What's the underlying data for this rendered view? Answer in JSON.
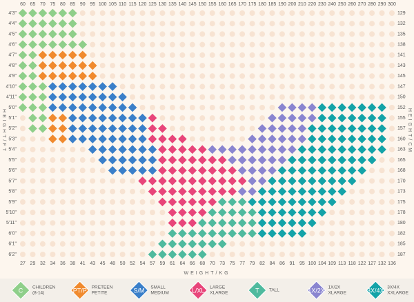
{
  "weights_lb": [
    60,
    65,
    70,
    75,
    80,
    85,
    90,
    95,
    100,
    105,
    110,
    115,
    120,
    125,
    130,
    135,
    140,
    145,
    150,
    155,
    160,
    165,
    170,
    175,
    180,
    185,
    190,
    200,
    210,
    220,
    230,
    240,
    250,
    260,
    270,
    280,
    290,
    300
  ],
  "weights_kg": [
    27,
    29,
    32,
    34,
    36,
    38,
    41,
    43,
    45,
    48,
    50,
    52,
    54,
    57,
    59,
    61,
    64,
    66,
    68,
    70,
    73,
    75,
    77,
    79,
    82,
    84,
    86,
    91,
    95,
    100,
    104,
    109,
    113,
    118,
    122,
    127,
    132,
    136
  ],
  "heights_ft": [
    "4'3\"",
    "4'4\"",
    "4'5\"",
    "4'6\"",
    "4'7\"",
    "4'8\"",
    "4'9\"",
    "4'10\"",
    "4'11\"",
    "5'0\"",
    "5'1\"",
    "5'2\"",
    "5'3\"",
    "5'4\"",
    "5'5\"",
    "5'6\"",
    "5'7\"",
    "5'8\"",
    "5'9\"",
    "5'10\"",
    "5'11\"",
    "6'0\"",
    "6'1\"",
    "6'2\""
  ],
  "heights_cm": [
    129,
    132,
    135,
    138,
    141,
    143,
    145,
    147,
    150,
    152,
    155,
    157,
    160,
    163,
    165,
    168,
    170,
    173,
    175,
    178,
    180,
    182,
    185,
    187
  ],
  "x_axis_label": "WEIGHT/KG",
  "y_axis_label": "HEIGHT/FT",
  "y2_axis_label": "HEIGHT/CM",
  "legend": [
    {
      "code": "C",
      "lines": [
        "CHILDREN",
        "(8-14)"
      ],
      "color": "#8fcf8a"
    },
    {
      "code": "PT/P",
      "lines": [
        "PRETEEN",
        "PETITE"
      ],
      "color": "#f08a2e"
    },
    {
      "code": "S/M",
      "lines": [
        "SMALL",
        "MEDIUM"
      ],
      "color": "#3a7fc9"
    },
    {
      "code": "L/XL",
      "lines": [
        "LARGE",
        "XLARGE"
      ],
      "color": "#e8457a"
    },
    {
      "code": "T",
      "lines": [
        "TALL"
      ],
      "color": "#4fba9e"
    },
    {
      "code": "1X/2X",
      "lines": [
        "1X/2X",
        "XLARGE"
      ],
      "color": "#8a85d0"
    },
    {
      "code": "3X/4X",
      "lines": [
        "3X/4X",
        "XXLARGE"
      ],
      "color": "#14a3a8"
    }
  ],
  "grid": [
    [
      "C",
      "C",
      "C",
      "C",
      "C",
      "C",
      null,
      null,
      null,
      null,
      null,
      null,
      null,
      null,
      null,
      null,
      null,
      null,
      null,
      null,
      null,
      null,
      null,
      null,
      null,
      null,
      null,
      null,
      null,
      null,
      null,
      null,
      null,
      null,
      null,
      null,
      null,
      null
    ],
    [
      "C",
      "C",
      "C",
      "C",
      "C",
      "C",
      null,
      null,
      null,
      null,
      null,
      null,
      null,
      null,
      null,
      null,
      null,
      null,
      null,
      null,
      null,
      null,
      null,
      null,
      null,
      null,
      null,
      null,
      null,
      null,
      null,
      null,
      null,
      null,
      null,
      null,
      null,
      null
    ],
    [
      "C",
      "C",
      "C",
      "C",
      "C",
      "C",
      null,
      null,
      null,
      null,
      null,
      null,
      null,
      null,
      null,
      null,
      null,
      null,
      null,
      null,
      null,
      null,
      null,
      null,
      null,
      null,
      null,
      null,
      null,
      null,
      null,
      null,
      null,
      null,
      null,
      null,
      null,
      null
    ],
    [
      "C",
      "C",
      "C",
      "C",
      "C",
      "C",
      "C",
      null,
      null,
      null,
      null,
      null,
      null,
      null,
      null,
      null,
      null,
      null,
      null,
      null,
      null,
      null,
      null,
      null,
      null,
      null,
      null,
      null,
      null,
      null,
      null,
      null,
      null,
      null,
      null,
      null,
      null,
      null
    ],
    [
      "C",
      "C",
      "PT/P",
      "PT/P",
      "PT/P",
      "PT/P",
      "PT/P",
      null,
      null,
      null,
      null,
      null,
      null,
      null,
      null,
      null,
      null,
      null,
      null,
      null,
      null,
      null,
      null,
      null,
      null,
      null,
      null,
      null,
      null,
      null,
      null,
      null,
      null,
      null,
      null,
      null,
      null,
      null
    ],
    [
      "C",
      "C",
      "PT/P",
      "PT/P",
      "PT/P",
      "PT/P",
      "PT/P",
      "PT/P",
      null,
      null,
      null,
      null,
      null,
      null,
      null,
      null,
      null,
      null,
      null,
      null,
      null,
      null,
      null,
      null,
      null,
      null,
      null,
      null,
      null,
      null,
      null,
      null,
      null,
      null,
      null,
      null,
      null,
      null
    ],
    [
      "C",
      "C",
      "PT/P",
      "PT/P",
      "PT/P",
      "PT/P",
      "PT/P",
      "PT/P",
      null,
      null,
      null,
      null,
      null,
      null,
      null,
      null,
      null,
      null,
      null,
      null,
      null,
      null,
      null,
      null,
      null,
      null,
      null,
      null,
      null,
      null,
      null,
      null,
      null,
      null,
      null,
      null,
      null,
      null
    ],
    [
      "C",
      "C",
      "C",
      "S/M",
      "S/M",
      "S/M",
      "S/M",
      "S/M",
      "S/M",
      "S/M",
      null,
      null,
      null,
      null,
      null,
      null,
      null,
      null,
      null,
      null,
      null,
      null,
      null,
      null,
      null,
      null,
      null,
      null,
      null,
      null,
      null,
      null,
      null,
      null,
      null,
      null,
      null,
      null
    ],
    [
      "C",
      "C",
      "C",
      "S/M",
      "S/M",
      "S/M",
      "S/M",
      "S/M",
      "S/M",
      "S/M",
      "S/M",
      null,
      null,
      null,
      null,
      null,
      null,
      null,
      null,
      null,
      null,
      null,
      null,
      null,
      null,
      null,
      null,
      null,
      null,
      null,
      null,
      null,
      null,
      null,
      null,
      null,
      null,
      null
    ],
    [
      "C",
      "C",
      "C",
      "S/M",
      "S/M",
      "S/M",
      "S/M",
      "S/M",
      "S/M",
      "S/M",
      "S/M",
      "S/M",
      null,
      null,
      null,
      null,
      null,
      null,
      null,
      null,
      null,
      null,
      null,
      null,
      null,
      null,
      "1X/2X",
      "1X/2X",
      "1X/2X",
      "1X/2X",
      "3X/4X",
      "3X/4X",
      "3X/4X",
      "3X/4X",
      "3X/4X",
      "3X/4X",
      "3X/4X",
      null
    ],
    [
      null,
      "C",
      "C",
      "PT/P",
      "PT/P",
      "S/M",
      "S/M",
      "S/M",
      "S/M",
      "S/M",
      "S/M",
      "S/M",
      "S/M",
      "L/XL",
      null,
      null,
      null,
      null,
      null,
      null,
      null,
      null,
      null,
      null,
      null,
      "1X/2X",
      "1X/2X",
      "1X/2X",
      "1X/2X",
      "1X/2X",
      "3X/4X",
      "3X/4X",
      "3X/4X",
      "3X/4X",
      "3X/4X",
      "3X/4X",
      "3X/4X",
      null
    ],
    [
      null,
      "C",
      "C",
      "PT/P",
      "PT/P",
      "S/M",
      "S/M",
      "S/M",
      "S/M",
      "S/M",
      "S/M",
      "S/M",
      "S/M",
      "L/XL",
      "L/XL",
      null,
      null,
      null,
      null,
      null,
      null,
      null,
      null,
      null,
      "1X/2X",
      "1X/2X",
      "1X/2X",
      "1X/2X",
      "1X/2X",
      "3X/4X",
      "3X/4X",
      "3X/4X",
      "3X/4X",
      "3X/4X",
      "3X/4X",
      "3X/4X",
      "3X/4X",
      null
    ],
    [
      null,
      null,
      null,
      "PT/P",
      "PT/P",
      "S/M",
      "S/M",
      "S/M",
      "S/M",
      "S/M",
      "S/M",
      "S/M",
      "S/M",
      "L/XL",
      "L/XL",
      "L/XL",
      "L/XL",
      null,
      null,
      null,
      null,
      null,
      null,
      "1X/2X",
      "1X/2X",
      "1X/2X",
      "1X/2X",
      "1X/2X",
      "1X/2X",
      "3X/4X",
      "3X/4X",
      "3X/4X",
      "3X/4X",
      "3X/4X",
      "3X/4X",
      "3X/4X",
      "3X/4X",
      null
    ],
    [
      null,
      null,
      null,
      null,
      null,
      null,
      null,
      "S/M",
      "S/M",
      "S/M",
      "S/M",
      "S/M",
      "S/M",
      "S/M",
      "L/XL",
      "L/XL",
      "L/XL",
      "L/XL",
      "L/XL",
      "1X/2X",
      "1X/2X",
      "1X/2X",
      "1X/2X",
      "1X/2X",
      "1X/2X",
      "1X/2X",
      "1X/2X",
      "1X/2X",
      "3X/4X",
      "3X/4X",
      "3X/4X",
      "3X/4X",
      "3X/4X",
      "3X/4X",
      "3X/4X",
      "3X/4X",
      "3X/4X",
      null
    ],
    [
      null,
      null,
      null,
      null,
      null,
      null,
      null,
      null,
      "S/M",
      "S/M",
      "S/M",
      "S/M",
      "S/M",
      "S/M",
      "L/XL",
      "L/XL",
      "L/XL",
      "L/XL",
      "L/XL",
      "L/XL",
      "L/XL",
      "1X/2X",
      "1X/2X",
      "1X/2X",
      "1X/2X",
      "1X/2X",
      "1X/2X",
      "3X/4X",
      "3X/4X",
      "3X/4X",
      "3X/4X",
      "3X/4X",
      "3X/4X",
      "3X/4X",
      "3X/4X",
      "3X/4X",
      null,
      null
    ],
    [
      null,
      null,
      null,
      null,
      null,
      null,
      null,
      null,
      null,
      "S/M",
      "S/M",
      "S/M",
      "S/M",
      "S/M",
      "L/XL",
      "L/XL",
      "L/XL",
      "L/XL",
      "L/XL",
      "L/XL",
      "L/XL",
      "L/XL",
      "1X/2X",
      "1X/2X",
      "1X/2X",
      "1X/2X",
      "3X/4X",
      "3X/4X",
      "3X/4X",
      "3X/4X",
      "3X/4X",
      "3X/4X",
      "3X/4X",
      "3X/4X",
      "3X/4X",
      null,
      null,
      null
    ],
    [
      null,
      null,
      null,
      null,
      null,
      null,
      null,
      null,
      null,
      null,
      null,
      null,
      "L/XL",
      "L/XL",
      "L/XL",
      "L/XL",
      "L/XL",
      "L/XL",
      "L/XL",
      "L/XL",
      "L/XL",
      "L/XL",
      "L/XL",
      "1X/2X",
      "1X/2X",
      "3X/4X",
      "3X/4X",
      "3X/4X",
      "3X/4X",
      "3X/4X",
      "3X/4X",
      "3X/4X",
      "3X/4X",
      "3X/4X",
      null,
      null,
      null,
      null
    ],
    [
      null,
      null,
      null,
      null,
      null,
      null,
      null,
      null,
      null,
      null,
      null,
      null,
      null,
      "L/XL",
      "L/XL",
      "L/XL",
      "L/XL",
      "L/XL",
      "L/XL",
      "L/XL",
      "L/XL",
      "L/XL",
      "1X/2X",
      "1X/2X",
      "3X/4X",
      "3X/4X",
      "3X/4X",
      "3X/4X",
      "3X/4X",
      "3X/4X",
      "3X/4X",
      "3X/4X",
      "3X/4X",
      null,
      null,
      null,
      null,
      null
    ],
    [
      null,
      null,
      null,
      null,
      null,
      null,
      null,
      null,
      null,
      null,
      null,
      null,
      null,
      null,
      "L/XL",
      "L/XL",
      "L/XL",
      "L/XL",
      "L/XL",
      "L/XL",
      "T",
      "T",
      "T",
      "3X/4X",
      "3X/4X",
      "3X/4X",
      "3X/4X",
      "3X/4X",
      "3X/4X",
      "3X/4X",
      "3X/4X",
      "3X/4X",
      null,
      null,
      null,
      null,
      null,
      null
    ],
    [
      null,
      null,
      null,
      null,
      null,
      null,
      null,
      null,
      null,
      null,
      null,
      null,
      null,
      null,
      null,
      "L/XL",
      "L/XL",
      "L/XL",
      "L/XL",
      "T",
      "T",
      "T",
      "T",
      "T",
      "3X/4X",
      "3X/4X",
      "3X/4X",
      "3X/4X",
      "3X/4X",
      "3X/4X",
      "3X/4X",
      null,
      null,
      null,
      null,
      null,
      null,
      null
    ],
    [
      null,
      null,
      null,
      null,
      null,
      null,
      null,
      null,
      null,
      null,
      null,
      null,
      null,
      null,
      null,
      "L/XL",
      "L/XL",
      "L/XL",
      "T",
      "T",
      "T",
      "T",
      "T",
      "T",
      "3X/4X",
      "3X/4X",
      "3X/4X",
      "3X/4X",
      "3X/4X",
      "3X/4X",
      null,
      null,
      null,
      null,
      null,
      null,
      null,
      null
    ],
    [
      null,
      null,
      null,
      null,
      null,
      null,
      null,
      null,
      null,
      null,
      null,
      null,
      null,
      null,
      null,
      "T",
      "T",
      "T",
      "T",
      "T",
      "T",
      "T",
      "T",
      "T",
      "3X/4X",
      "3X/4X",
      "3X/4X",
      "3X/4X",
      "3X/4X",
      null,
      null,
      null,
      null,
      null,
      null,
      null,
      null,
      null
    ],
    [
      null,
      null,
      null,
      null,
      null,
      null,
      null,
      null,
      null,
      null,
      null,
      null,
      null,
      null,
      "T",
      "T",
      "T",
      "T",
      "T",
      "T",
      "T",
      null,
      null,
      null,
      null,
      null,
      null,
      null,
      null,
      null,
      null,
      null,
      null,
      null,
      null,
      null,
      null,
      null
    ],
    [
      null,
      null,
      null,
      null,
      null,
      null,
      null,
      null,
      null,
      null,
      null,
      null,
      null,
      "T",
      "T",
      "T",
      "T",
      "T",
      "T",
      null,
      null,
      null,
      null,
      null,
      null,
      null,
      null,
      null,
      null,
      null,
      null,
      null,
      null,
      null,
      null,
      null,
      null,
      null
    ]
  ]
}
